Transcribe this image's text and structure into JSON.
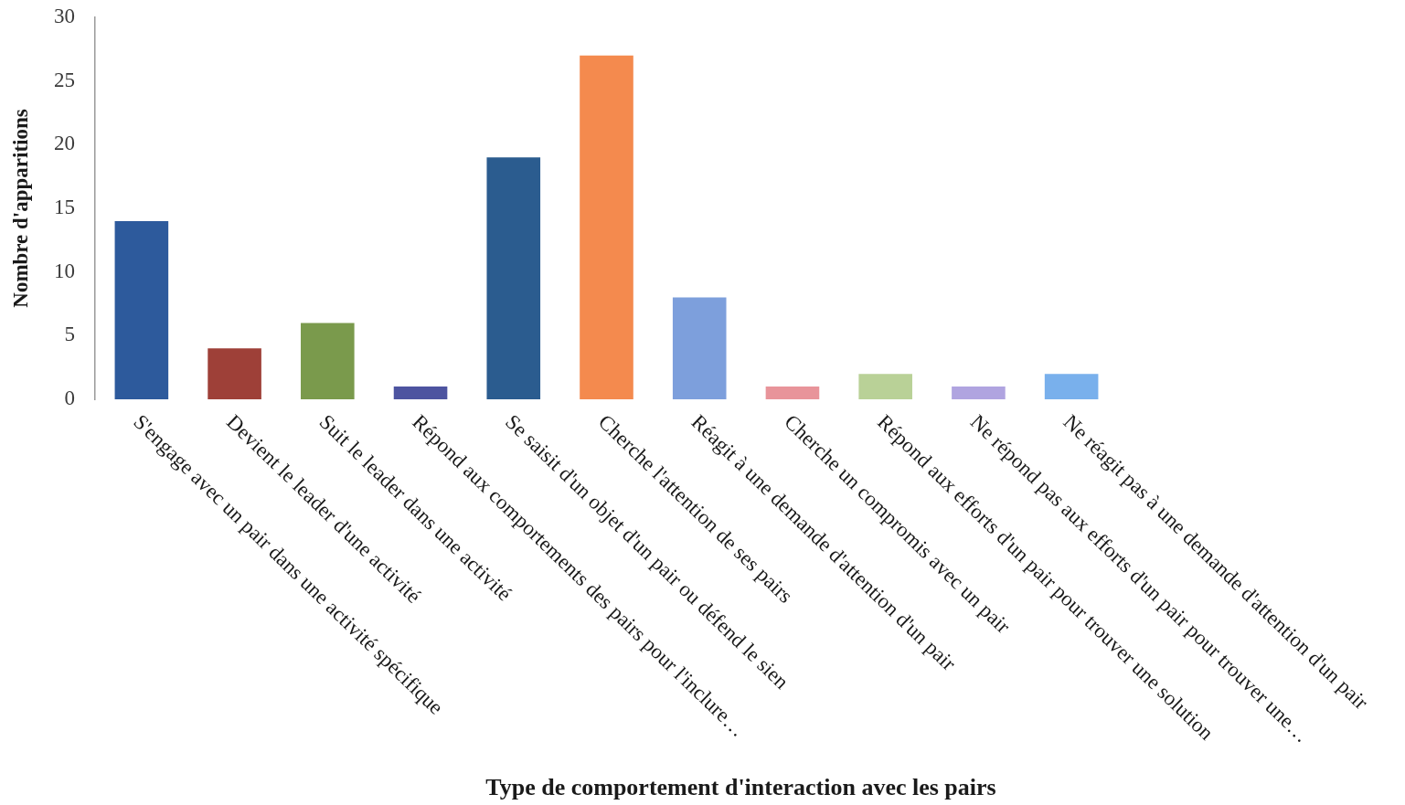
{
  "chart_data": {
    "type": "bar",
    "xlabel": "Type de comportement d'interaction avec les pairs",
    "ylabel": "Nombre d'apparitions",
    "categories": [
      "S'engage avec un pair dans une activité spécifique",
      "Devient le leader d'une activité",
      "Suit le leader dans une activité",
      "Répond aux comportements des pairs pour l'inclure…",
      "Se saisit d'un objet d'un pair ou défend le sien",
      "Cherche l'attention de ses pairs",
      "Réagit à une demande d'attention d'un pair",
      "Cherche un compromis avec un pair",
      "Répond aux efforts d'un pair pour trouver une solution",
      "Ne répond pas aux efforts d'un pair pour trouver une…",
      "Ne réagit pas à une demande d'attention d'un pair"
    ],
    "values": [
      14,
      4,
      6,
      1,
      19,
      27,
      8,
      1,
      2,
      1,
      2
    ],
    "colors": [
      "#2d5a9c",
      "#9e4038",
      "#7a9a4c",
      "#4d54a0",
      "#2b5c8f",
      "#f48a4e",
      "#7d9fdc",
      "#e8949a",
      "#b9d197",
      "#b0a4e0",
      "#79b0ec"
    ],
    "ylim": [
      0,
      30
    ],
    "yticks": [
      0,
      5,
      10,
      15,
      20,
      25,
      30
    ]
  }
}
